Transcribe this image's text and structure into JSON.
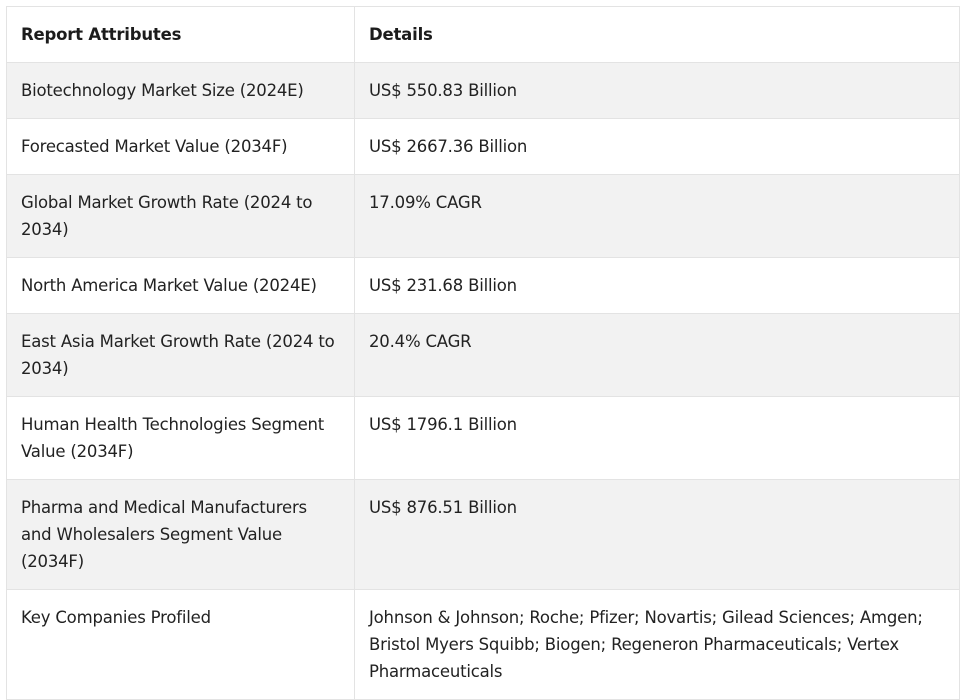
{
  "table": {
    "headers": [
      "Report Attributes",
      "Details"
    ],
    "rows": [
      {
        "attribute": "Biotechnology Market Size (2024E)",
        "detail": "US$ 550.83 Billion"
      },
      {
        "attribute": "Forecasted Market Value (2034F)",
        "detail": "US$ 2667.36 Billion"
      },
      {
        "attribute": "Global Market Growth Rate (2024 to 2034)",
        "detail": "17.09% CAGR"
      },
      {
        "attribute": "North America Market Value (2024E)",
        "detail": "US$ 231.68 Billion"
      },
      {
        "attribute": "East Asia Market Growth Rate (2024 to 2034)",
        "detail": "20.4% CAGR"
      },
      {
        "attribute": "Human Health Technologies Segment Value (2034F)",
        "detail": "US$ 1796.1 Billion"
      },
      {
        "attribute": "Pharma and Medical Manufacturers and Wholesalers Segment Value (2034F)",
        "detail": "US$ 876.51 Billion"
      },
      {
        "attribute": "Key Companies Profiled",
        "detail": "Johnson & Johnson; Roche; Pfizer; Novartis; Gilead Sciences; Amgen; Bristol Myers Squibb; Biogen; Regeneron Pharmaceuticals; Vertex Pharmaceuticals"
      }
    ]
  },
  "colors": {
    "border": "#e3e3e3",
    "shaded_row": "#f2f2f2",
    "text": "#222222"
  }
}
